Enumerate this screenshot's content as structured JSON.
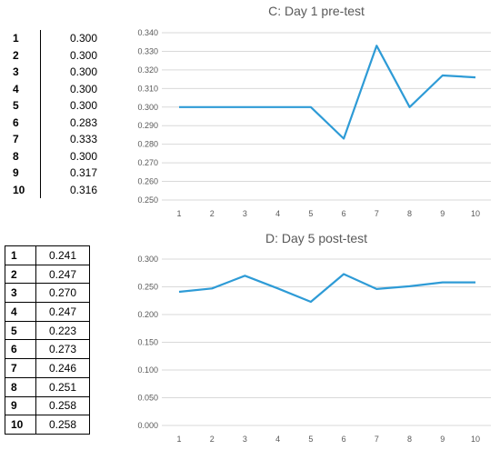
{
  "table_c": {
    "rows": [
      {
        "idx": "1",
        "val": "0.300"
      },
      {
        "idx": "2",
        "val": "0.300"
      },
      {
        "idx": "3",
        "val": "0.300"
      },
      {
        "idx": "4",
        "val": "0.300"
      },
      {
        "idx": "5",
        "val": "0.300"
      },
      {
        "idx": "6",
        "val": "0.283"
      },
      {
        "idx": "7",
        "val": "0.333"
      },
      {
        "idx": "8",
        "val": "0.300"
      },
      {
        "idx": "9",
        "val": "0.317"
      },
      {
        "idx": "10",
        "val": "0.316"
      }
    ]
  },
  "table_d": {
    "rows": [
      {
        "idx": "1",
        "val": "0.241"
      },
      {
        "idx": "2",
        "val": "0.247"
      },
      {
        "idx": "3",
        "val": "0.270"
      },
      {
        "idx": "4",
        "val": "0.247"
      },
      {
        "idx": "5",
        "val": "0.223"
      },
      {
        "idx": "6",
        "val": "0.273"
      },
      {
        "idx": "7",
        "val": "0.246"
      },
      {
        "idx": "8",
        "val": "0.251"
      },
      {
        "idx": "9",
        "val": "0.258"
      },
      {
        "idx": "10",
        "val": "0.258"
      }
    ]
  },
  "chart_data": [
    {
      "type": "line",
      "title": "C: Day 1 pre-test",
      "categories": [
        "1",
        "2",
        "3",
        "4",
        "5",
        "6",
        "7",
        "8",
        "9",
        "10"
      ],
      "values": [
        0.3,
        0.3,
        0.3,
        0.3,
        0.3,
        0.283,
        0.333,
        0.3,
        0.317,
        0.316
      ],
      "ylim": [
        0.25,
        0.34
      ],
      "yticks": [
        "0.250",
        "0.260",
        "0.270",
        "0.280",
        "0.290",
        "0.300",
        "0.310",
        "0.320",
        "0.330",
        "0.340"
      ],
      "grid": true,
      "line_color": "#2E9BD6"
    },
    {
      "type": "line",
      "title": "D: Day 5 post-test",
      "categories": [
        "1",
        "2",
        "3",
        "4",
        "5",
        "6",
        "7",
        "8",
        "9",
        "10"
      ],
      "values": [
        0.241,
        0.247,
        0.27,
        0.247,
        0.223,
        0.273,
        0.246,
        0.251,
        0.258,
        0.258
      ],
      "ylim": [
        0.0,
        0.3
      ],
      "yticks": [
        "0.000",
        "0.050",
        "0.100",
        "0.150",
        "0.200",
        "0.250",
        "0.300"
      ],
      "grid": true,
      "line_color": "#2E9BD6"
    }
  ]
}
